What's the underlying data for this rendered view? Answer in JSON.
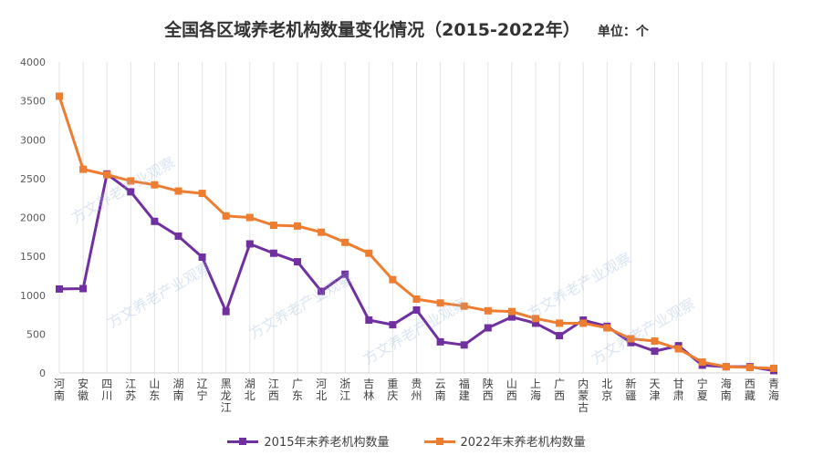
{
  "chart_data": {
    "type": "line",
    "title": "全国各区域养老机构数量变化情况（2015-2022年）",
    "unit_label": "单位：个",
    "ylim": [
      0,
      4000
    ],
    "yticks": [
      0,
      500,
      1000,
      1500,
      2000,
      2500,
      3000,
      3500,
      4000
    ],
    "categories": [
      "河南",
      "安徽",
      "四川",
      "江苏",
      "山东",
      "湖南",
      "辽宁",
      "黑龙江",
      "湖北",
      "江西",
      "广东",
      "河北",
      "浙江",
      "吉林",
      "重庆",
      "贵州",
      "云南",
      "福建",
      "陕西",
      "山西",
      "上海",
      "广西",
      "内蒙古",
      "北京",
      "新疆",
      "天津",
      "甘肃",
      "宁夏",
      "海南",
      "西藏",
      "青海"
    ],
    "series": [
      {
        "name": "2015年末养老机构数量",
        "color": "#7030A0",
        "values": [
          1080,
          1085,
          2560,
          2330,
          1950,
          1760,
          1490,
          790,
          1660,
          1540,
          1430,
          1050,
          1270,
          680,
          620,
          810,
          400,
          360,
          580,
          720,
          640,
          480,
          680,
          600,
          390,
          280,
          350,
          100,
          80,
          80,
          30
        ]
      },
      {
        "name": "2022年末养老机构数量",
        "color": "#ED7D31",
        "values": [
          3560,
          2620,
          2550,
          2470,
          2420,
          2340,
          2310,
          2020,
          2000,
          1900,
          1890,
          1810,
          1680,
          1540,
          1200,
          950,
          900,
          860,
          800,
          790,
          700,
          640,
          640,
          580,
          440,
          410,
          310,
          140,
          80,
          70,
          60
        ]
      }
    ],
    "watermark": "方文养老产业观察"
  }
}
